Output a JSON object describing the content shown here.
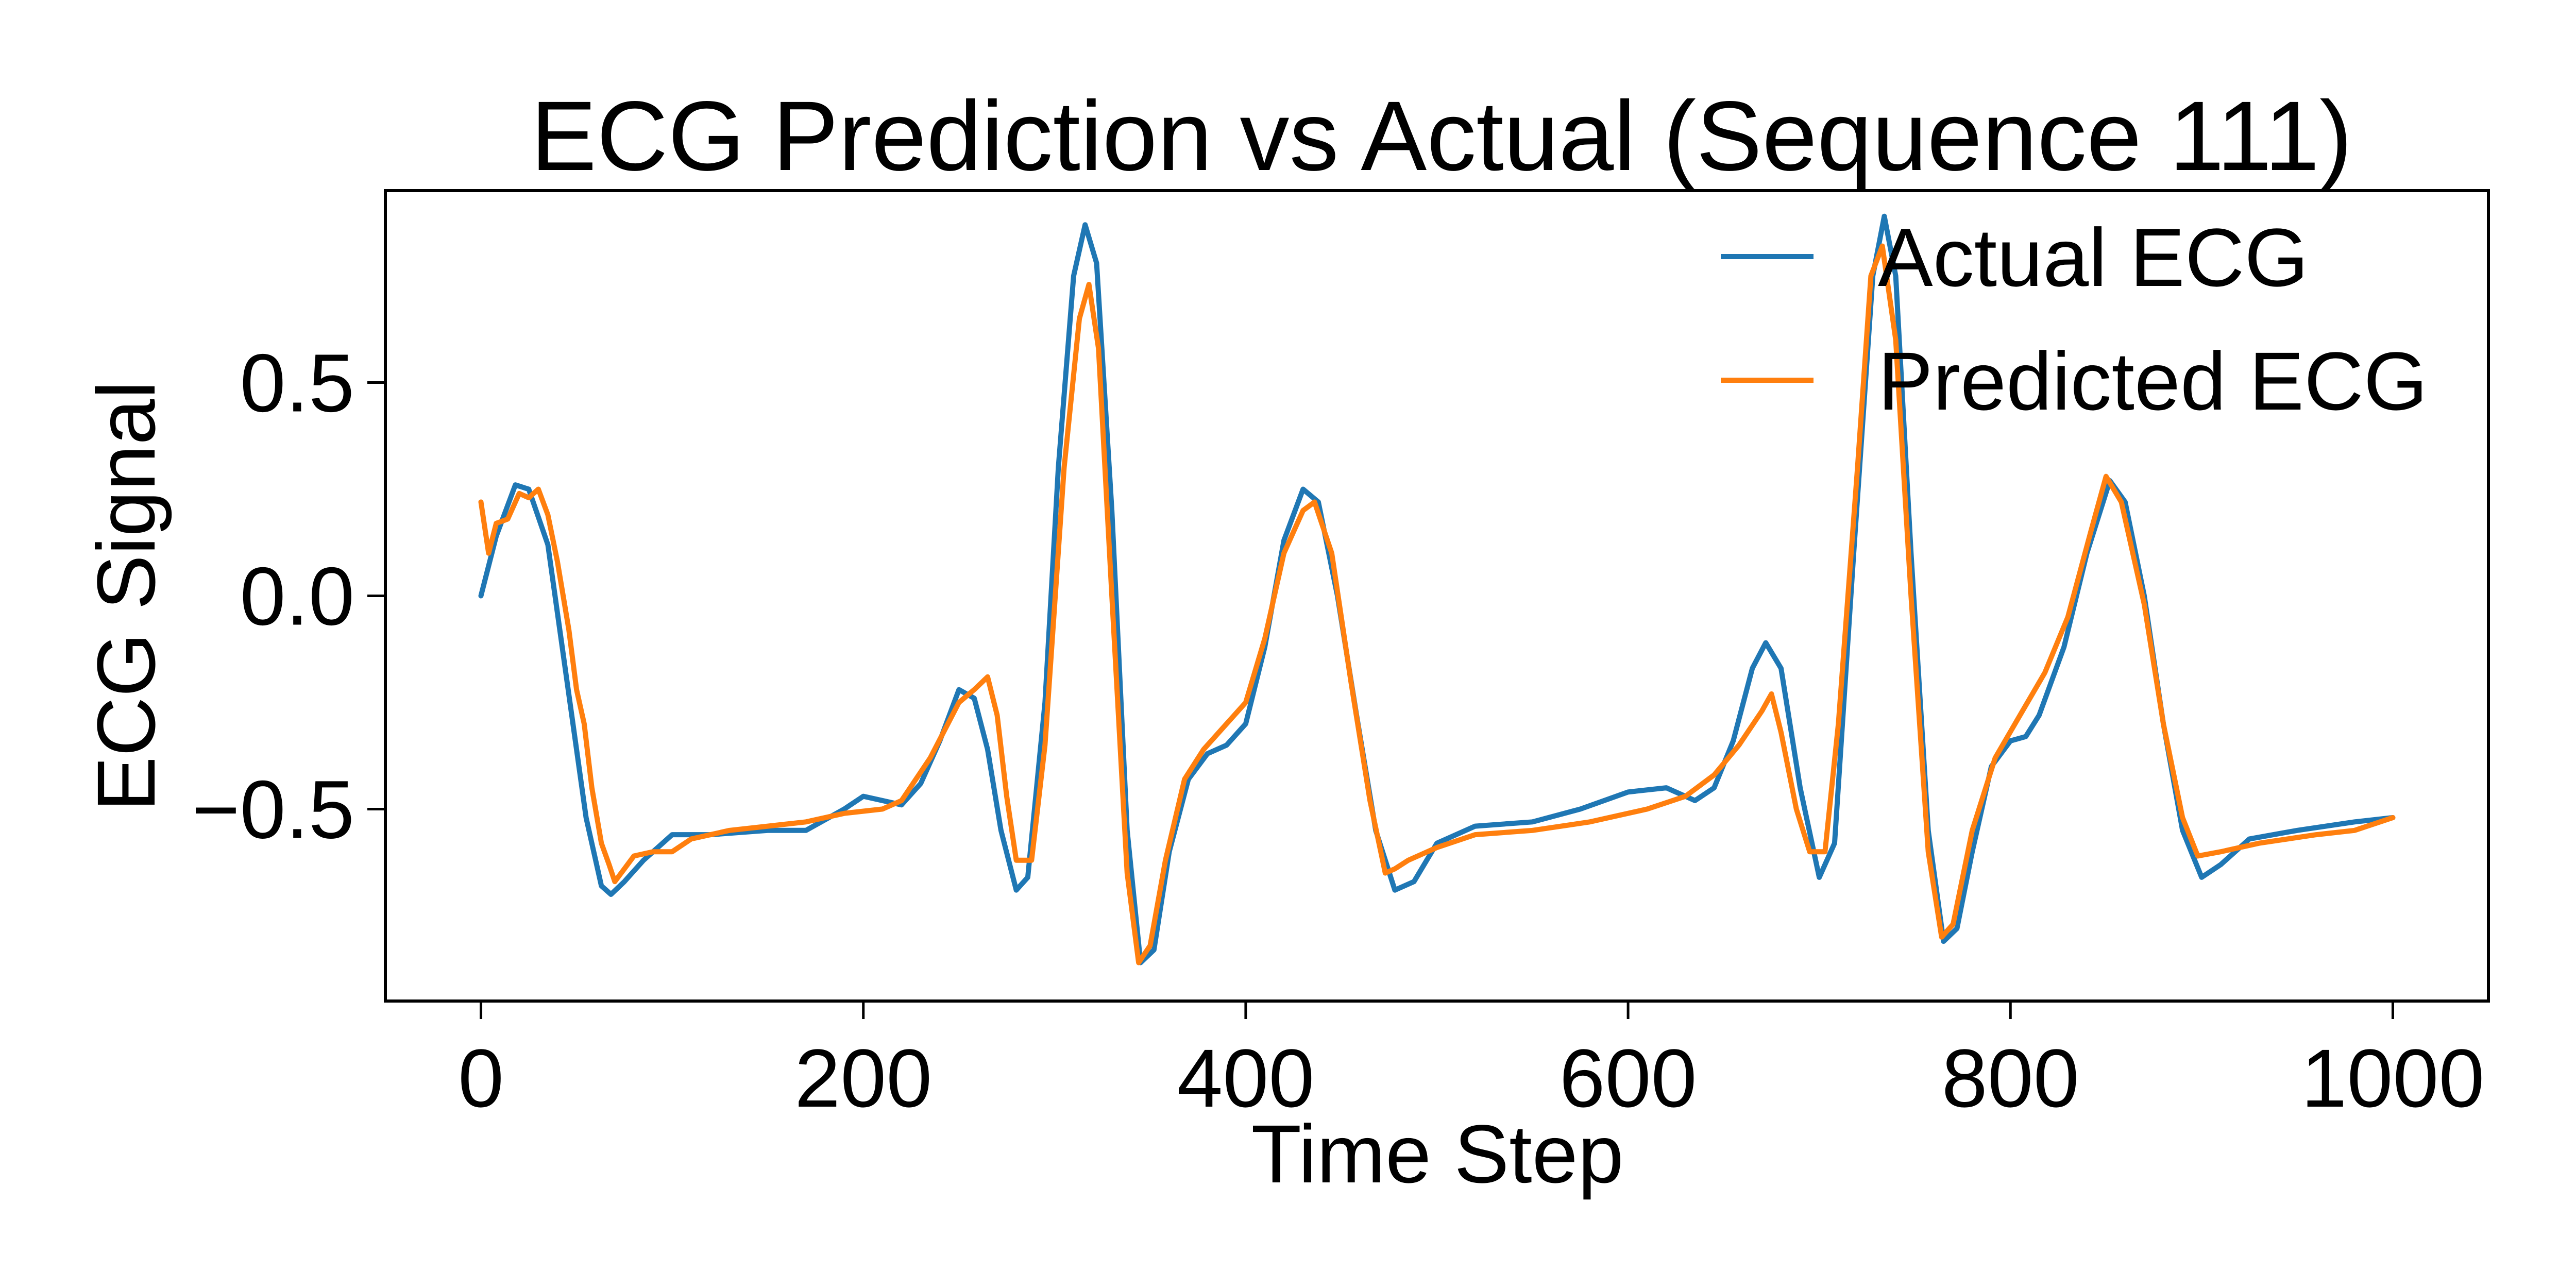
{
  "chart_data": {
    "type": "line",
    "title": "ECG Prediction vs Actual (Sequence 111)",
    "xlabel": "Time Step",
    "ylabel": "ECG Signal",
    "xlim": [
      -50,
      1050
    ],
    "ylim": [
      -0.95,
      0.95
    ],
    "xticks": [
      0,
      200,
      400,
      600,
      800,
      1000
    ],
    "xtick_labels": [
      "0",
      "200",
      "400",
      "600",
      "800",
      "1000"
    ],
    "yticks": [
      -0.5,
      0.0,
      0.5
    ],
    "ytick_labels": [
      "−0.5",
      "0.0",
      "0.5"
    ],
    "grid": false,
    "legend_position": "top-right",
    "colors": {
      "actual": "#1f77b4",
      "predicted": "#ff7f0e"
    },
    "series": [
      {
        "name": "Actual ECG",
        "points": [
          [
            0,
            0.0
          ],
          [
            8,
            0.14
          ],
          [
            18,
            0.26
          ],
          [
            25,
            0.25
          ],
          [
            35,
            0.12
          ],
          [
            45,
            -0.2
          ],
          [
            55,
            -0.52
          ],
          [
            63,
            -0.68
          ],
          [
            68,
            -0.7
          ],
          [
            75,
            -0.67
          ],
          [
            85,
            -0.62
          ],
          [
            100,
            -0.56
          ],
          [
            120,
            -0.56
          ],
          [
            150,
            -0.55
          ],
          [
            170,
            -0.55
          ],
          [
            190,
            -0.5
          ],
          [
            200,
            -0.47
          ],
          [
            210,
            -0.48
          ],
          [
            220,
            -0.49
          ],
          [
            230,
            -0.44
          ],
          [
            240,
            -0.34
          ],
          [
            250,
            -0.22
          ],
          [
            258,
            -0.24
          ],
          [
            265,
            -0.36
          ],
          [
            272,
            -0.55
          ],
          [
            280,
            -0.69
          ],
          [
            286,
            -0.66
          ],
          [
            295,
            -0.25
          ],
          [
            302,
            0.3
          ],
          [
            310,
            0.75
          ],
          [
            316,
            0.87
          ],
          [
            322,
            0.78
          ],
          [
            330,
            0.2
          ],
          [
            338,
            -0.55
          ],
          [
            345,
            -0.86
          ],
          [
            352,
            -0.83
          ],
          [
            360,
            -0.6
          ],
          [
            370,
            -0.43
          ],
          [
            380,
            -0.37
          ],
          [
            390,
            -0.35
          ],
          [
            400,
            -0.3
          ],
          [
            410,
            -0.12
          ],
          [
            420,
            0.13
          ],
          [
            430,
            0.25
          ],
          [
            438,
            0.22
          ],
          [
            448,
            0.0
          ],
          [
            458,
            -0.28
          ],
          [
            468,
            -0.55
          ],
          [
            478,
            -0.69
          ],
          [
            488,
            -0.67
          ],
          [
            500,
            -0.58
          ],
          [
            520,
            -0.54
          ],
          [
            550,
            -0.53
          ],
          [
            575,
            -0.5
          ],
          [
            600,
            -0.46
          ],
          [
            620,
            -0.45
          ],
          [
            635,
            -0.48
          ],
          [
            645,
            -0.45
          ],
          [
            655,
            -0.34
          ],
          [
            665,
            -0.17
          ],
          [
            672,
            -0.11
          ],
          [
            680,
            -0.17
          ],
          [
            690,
            -0.45
          ],
          [
            700,
            -0.66
          ],
          [
            708,
            -0.58
          ],
          [
            718,
            0.1
          ],
          [
            728,
            0.75
          ],
          [
            734,
            0.89
          ],
          [
            740,
            0.75
          ],
          [
            748,
            0.1
          ],
          [
            757,
            -0.55
          ],
          [
            765,
            -0.81
          ],
          [
            772,
            -0.78
          ],
          [
            780,
            -0.6
          ],
          [
            790,
            -0.4
          ],
          [
            800,
            -0.34
          ],
          [
            808,
            -0.33
          ],
          [
            815,
            -0.28
          ],
          [
            828,
            -0.12
          ],
          [
            840,
            0.1
          ],
          [
            852,
            0.27
          ],
          [
            860,
            0.22
          ],
          [
            870,
            0.0
          ],
          [
            880,
            -0.3
          ],
          [
            890,
            -0.55
          ],
          [
            900,
            -0.66
          ],
          [
            910,
            -0.63
          ],
          [
            925,
            -0.57
          ],
          [
            950,
            -0.55
          ],
          [
            980,
            -0.53
          ],
          [
            1000,
            -0.52
          ]
        ]
      },
      {
        "name": "Predicted ECG",
        "points": [
          [
            0,
            0.22
          ],
          [
            4,
            0.1
          ],
          [
            8,
            0.17
          ],
          [
            14,
            0.18
          ],
          [
            20,
            0.24
          ],
          [
            25,
            0.23
          ],
          [
            30,
            0.25
          ],
          [
            35,
            0.19
          ],
          [
            40,
            0.08
          ],
          [
            46,
            -0.08
          ],
          [
            50,
            -0.22
          ],
          [
            54,
            -0.3
          ],
          [
            58,
            -0.45
          ],
          [
            63,
            -0.58
          ],
          [
            67,
            -0.63
          ],
          [
            70,
            -0.67
          ],
          [
            75,
            -0.64
          ],
          [
            80,
            -0.61
          ],
          [
            90,
            -0.6
          ],
          [
            100,
            -0.6
          ],
          [
            110,
            -0.57
          ],
          [
            130,
            -0.55
          ],
          [
            150,
            -0.54
          ],
          [
            170,
            -0.53
          ],
          [
            190,
            -0.51
          ],
          [
            210,
            -0.5
          ],
          [
            220,
            -0.48
          ],
          [
            235,
            -0.38
          ],
          [
            250,
            -0.25
          ],
          [
            258,
            -0.22
          ],
          [
            265,
            -0.19
          ],
          [
            270,
            -0.28
          ],
          [
            275,
            -0.47
          ],
          [
            280,
            -0.62
          ],
          [
            288,
            -0.62
          ],
          [
            295,
            -0.35
          ],
          [
            305,
            0.3
          ],
          [
            313,
            0.65
          ],
          [
            318,
            0.73
          ],
          [
            323,
            0.58
          ],
          [
            330,
            0.0
          ],
          [
            338,
            -0.65
          ],
          [
            344,
            -0.86
          ],
          [
            350,
            -0.82
          ],
          [
            358,
            -0.62
          ],
          [
            368,
            -0.43
          ],
          [
            378,
            -0.36
          ],
          [
            390,
            -0.3
          ],
          [
            400,
            -0.25
          ],
          [
            410,
            -0.1
          ],
          [
            420,
            0.1
          ],
          [
            430,
            0.2
          ],
          [
            436,
            0.22
          ],
          [
            445,
            0.1
          ],
          [
            455,
            -0.2
          ],
          [
            465,
            -0.48
          ],
          [
            473,
            -0.65
          ],
          [
            478,
            -0.64
          ],
          [
            485,
            -0.62
          ],
          [
            500,
            -0.59
          ],
          [
            520,
            -0.56
          ],
          [
            550,
            -0.55
          ],
          [
            580,
            -0.53
          ],
          [
            610,
            -0.5
          ],
          [
            630,
            -0.47
          ],
          [
            645,
            -0.42
          ],
          [
            658,
            -0.35
          ],
          [
            670,
            -0.27
          ],
          [
            675,
            -0.23
          ],
          [
            680,
            -0.32
          ],
          [
            688,
            -0.5
          ],
          [
            695,
            -0.6
          ],
          [
            703,
            -0.6
          ],
          [
            710,
            -0.3
          ],
          [
            720,
            0.3
          ],
          [
            727,
            0.75
          ],
          [
            733,
            0.82
          ],
          [
            740,
            0.6
          ],
          [
            748,
            0.0
          ],
          [
            757,
            -0.6
          ],
          [
            764,
            -0.8
          ],
          [
            770,
            -0.77
          ],
          [
            780,
            -0.55
          ],
          [
            792,
            -0.38
          ],
          [
            805,
            -0.28
          ],
          [
            818,
            -0.18
          ],
          [
            830,
            -0.05
          ],
          [
            842,
            0.15
          ],
          [
            850,
            0.28
          ],
          [
            858,
            0.22
          ],
          [
            870,
            -0.02
          ],
          [
            880,
            -0.3
          ],
          [
            890,
            -0.52
          ],
          [
            898,
            -0.61
          ],
          [
            910,
            -0.6
          ],
          [
            930,
            -0.58
          ],
          [
            960,
            -0.56
          ],
          [
            980,
            -0.55
          ],
          [
            1000,
            -0.52
          ]
        ]
      }
    ]
  }
}
